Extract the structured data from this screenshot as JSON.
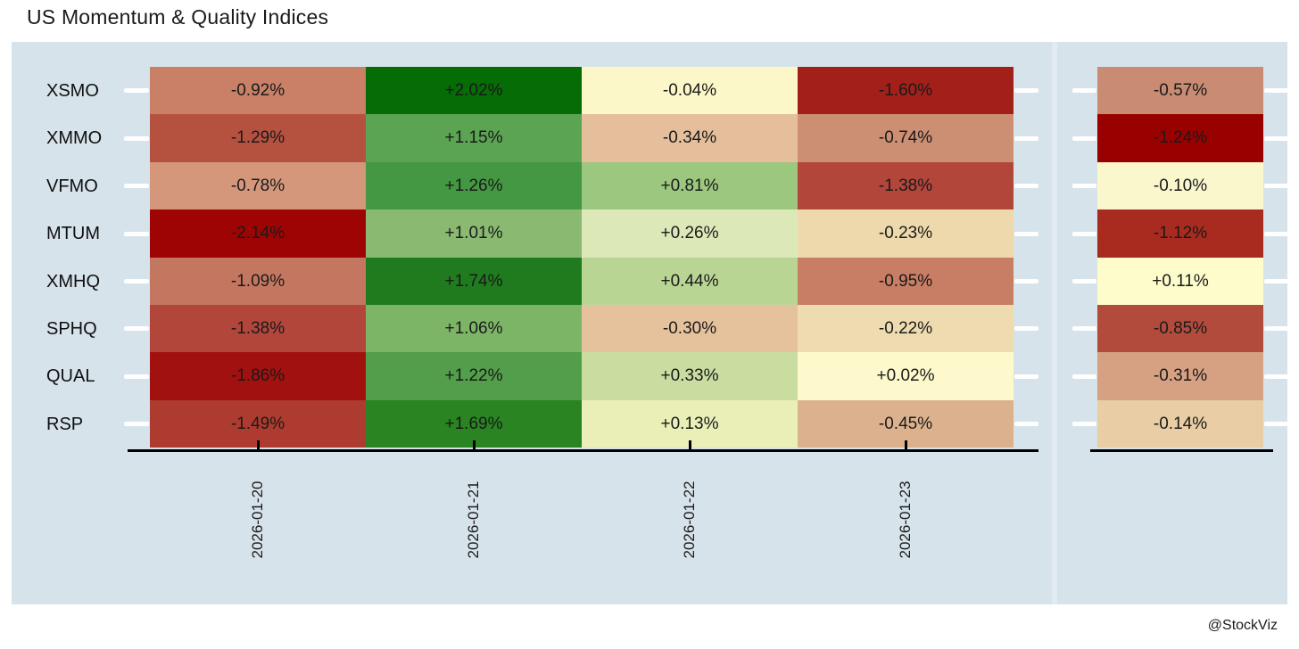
{
  "title": "US Momentum & Quality Indices",
  "watermark": "@StockViz",
  "colors": {
    "plot_background": "#d7e3ea",
    "panel_divider": "#e1ebf1",
    "axis": "#000000",
    "cell_text": "#1a1a1a",
    "y_tick_dash": "#ffffff",
    "negative_extreme": "#9f0404",
    "neutral": "#fbf7c8",
    "positive_extreme": "#066c06"
  },
  "chart_data": {
    "type": "heatmap",
    "title": "US Momentum & Quality Indices",
    "rows": [
      "XSMO",
      "XMMO",
      "VFMO",
      "MTUM",
      "XMHQ",
      "SPHQ",
      "QUAL",
      "RSP"
    ],
    "columns": [
      "2026-01-20",
      "2026-01-21",
      "2026-01-22",
      "2026-01-23"
    ],
    "layout": {
      "grid": false,
      "legend": false,
      "x_tick_rotation": 90,
      "two_panels": true,
      "summary_panel_position": "right"
    },
    "daily": {
      "series": [
        {
          "name": "XSMO",
          "values": [
            -0.92,
            2.02,
            -0.04,
            -1.6
          ],
          "labels": [
            "-0.92%",
            "+2.02%",
            "-0.04%",
            "-1.60%"
          ],
          "colors": [
            "#c98066",
            "#066c06",
            "#fbf7c8",
            "#a21f1a"
          ]
        },
        {
          "name": "XMMO",
          "values": [
            -1.29,
            1.15,
            -0.34,
            -0.74
          ],
          "labels": [
            "-1.29%",
            "+1.15%",
            "-0.34%",
            "-0.74%"
          ],
          "colors": [
            "#b5513f",
            "#5aa453",
            "#e5bf9c",
            "#cd8f73"
          ]
        },
        {
          "name": "VFMO",
          "values": [
            -0.78,
            1.26,
            0.81,
            -1.38
          ],
          "labels": [
            "-0.78%",
            "+1.26%",
            "+0.81%",
            "-1.38%"
          ],
          "colors": [
            "#d4977b",
            "#449743",
            "#9cc77f",
            "#b2463a"
          ]
        },
        {
          "name": "MTUM",
          "values": [
            -2.14,
            1.01,
            0.26,
            -0.23
          ],
          "labels": [
            "-2.14%",
            "+1.01%",
            "+0.26%",
            "-0.23%"
          ],
          "colors": [
            "#9f0404",
            "#8aba72",
            "#dce8b8",
            "#eed9ad"
          ]
        },
        {
          "name": "XMHQ",
          "values": [
            -1.09,
            1.74,
            0.44,
            -0.95
          ],
          "labels": [
            "-1.09%",
            "+1.74%",
            "+0.44%",
            "-0.95%"
          ],
          "colors": [
            "#c47760",
            "#1f7b1e",
            "#b9d594",
            "#c87e64"
          ]
        },
        {
          "name": "SPHQ",
          "values": [
            -1.38,
            1.06,
            -0.3,
            -0.22
          ],
          "labels": [
            "-1.38%",
            "+1.06%",
            "-0.30%",
            "-0.22%"
          ],
          "colors": [
            "#b2463a",
            "#7db566",
            "#e6c29c",
            "#efdbb0"
          ]
        },
        {
          "name": "QUAL",
          "values": [
            -1.86,
            1.22,
            0.33,
            0.02
          ],
          "labels": [
            "-1.86%",
            "+1.22%",
            "+0.33%",
            "+0.02%"
          ],
          "colors": [
            "#a11110",
            "#529e4a",
            "#c9dda1",
            "#fdf9cc"
          ]
        },
        {
          "name": "RSP",
          "values": [
            -1.49,
            1.69,
            0.13,
            -0.45
          ],
          "labels": [
            "-1.49%",
            "+1.69%",
            "+0.13%",
            "-0.45%"
          ],
          "colors": [
            "#ae3b2f",
            "#298421",
            "#e9efb6",
            "#dcb28e"
          ]
        }
      ]
    },
    "summary": {
      "values": [
        -0.57,
        -1.24,
        -0.1,
        -1.12,
        0.11,
        -0.85,
        -0.31,
        -0.14
      ],
      "labels": [
        "-0.57%",
        "-1.24%",
        "-0.10%",
        "-1.12%",
        "+0.11%",
        "-0.85%",
        "-0.31%",
        "-0.14%"
      ],
      "colors": [
        "#c98b71",
        "#990101",
        "#fbf7cd",
        "#a92b1f",
        "#fdfcca",
        "#b24b3c",
        "#d6a183",
        "#e9cda4"
      ]
    }
  }
}
